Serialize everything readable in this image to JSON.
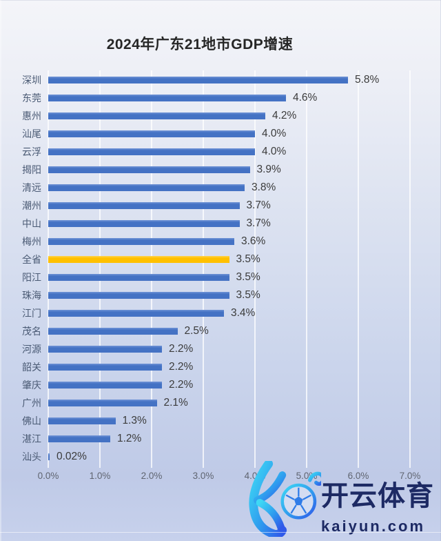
{
  "chart_data": {
    "type": "bar",
    "orientation": "horizontal",
    "title": "2024年广东21地市GDP增速",
    "categories": [
      "深圳",
      "东莞",
      "惠州",
      "汕尾",
      "云浮",
      "揭阳",
      "清远",
      "潮州",
      "中山",
      "梅州",
      "全省",
      "阳江",
      "珠海",
      "江门",
      "茂名",
      "河源",
      "韶关",
      "肇庆",
      "广州",
      "佛山",
      "湛江",
      "汕头"
    ],
    "values": [
      5.8,
      4.6,
      4.2,
      4.0,
      4.0,
      3.9,
      3.8,
      3.7,
      3.7,
      3.6,
      3.5,
      3.5,
      3.5,
      3.4,
      2.5,
      2.2,
      2.2,
      2.2,
      2.1,
      1.3,
      1.2,
      0.02
    ],
    "display_values": [
      "5.8%",
      "4.6%",
      "4.2%",
      "4.0%",
      "4.0%",
      "3.9%",
      "3.8%",
      "3.7%",
      "3.7%",
      "3.6%",
      "3.5%",
      "3.5%",
      "3.5%",
      "3.4%",
      "2.5%",
      "2.2%",
      "2.2%",
      "2.2%",
      "2.1%",
      "1.3%",
      "1.2%",
      "0.02%"
    ],
    "highlight": {
      "category": "全省",
      "index": 10,
      "color": "#FFC000"
    },
    "bar_color": "#4472C4",
    "xlabel": "",
    "ylabel": "",
    "xlim": [
      0,
      7
    ],
    "x_ticks": {
      "values": [
        0,
        1,
        2,
        3,
        4,
        5,
        6,
        7
      ],
      "labels": [
        "0.0%",
        "1.0%",
        "2.0%",
        "3.0%",
        "4.0%",
        "5.0%",
        "6.0%",
        "7.0%"
      ]
    },
    "grid": "vertical white gridlines",
    "legend": "none"
  },
  "colors": {
    "title": "#262626",
    "category_label": "#4A5A74",
    "value_label": "#3B3B3B",
    "axis_label": "#5F6470",
    "gridline": "#FFFFFF",
    "bar_blue": "#4472C4",
    "bar_gold": "#FFC000",
    "background_top": "#F4F5F9",
    "background_bottom": "#C7D1EC",
    "watermark_text": "#1D2A64",
    "logo_gradient_start": "#3ED8F5",
    "logo_gradient_end": "#3059E9"
  },
  "watermark": {
    "brand_cn": "开云体育",
    "domain": "kaiyun.com",
    "logo": "stylized K with soccer ball"
  }
}
